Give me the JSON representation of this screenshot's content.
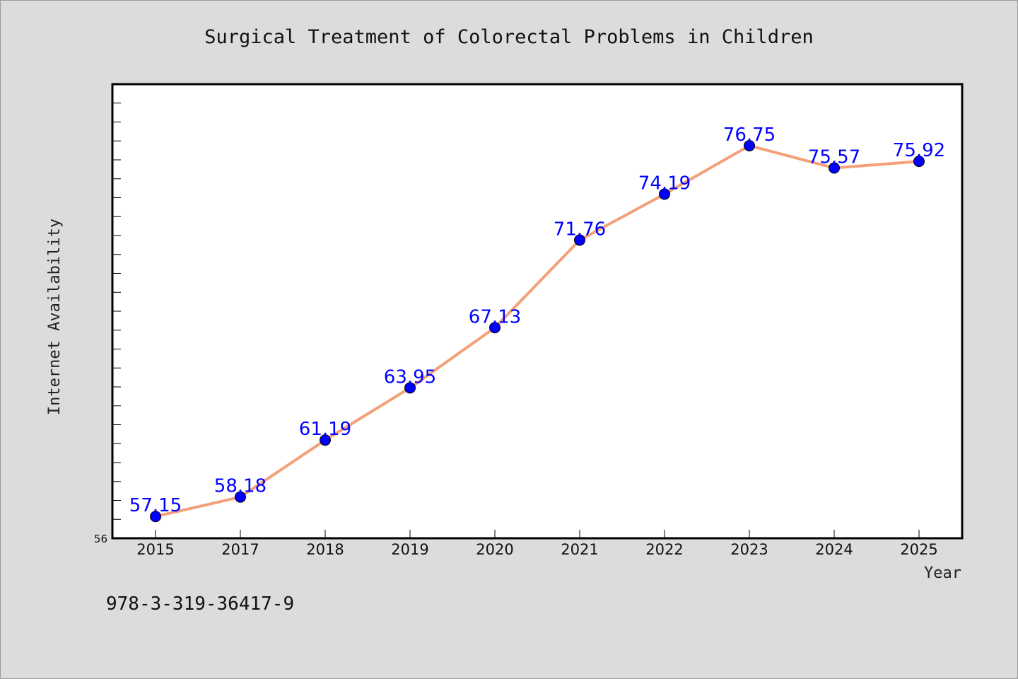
{
  "chart_data": {
    "type": "line",
    "title": "Surgical Treatment of Colorectal Problems in Children",
    "xlabel": "Year",
    "ylabel": "Internet Availability",
    "categories": [
      "2015",
      "2017",
      "2018",
      "2019",
      "2020",
      "2021",
      "2022",
      "2023",
      "2024",
      "2025"
    ],
    "series": [
      {
        "values": [
          57.15,
          58.18,
          61.19,
          63.95,
          67.13,
          71.76,
          74.19,
          76.75,
          75.57,
          75.92
        ],
        "labels": [
          "57.15",
          "58.18",
          "61.19",
          "63.95",
          "67.13",
          "71.76",
          "74.19",
          "76.75",
          "75.57",
          "75.92"
        ],
        "line_color": "#f4a07a",
        "marker_color": "#0000ff"
      }
    ],
    "ylim": [
      56,
      80
    ],
    "y_tick_labels": [
      "56"
    ],
    "grid": false,
    "legend": "none"
  },
  "footer_text": "978-3-319-36417-9",
  "colors": {
    "background": "#dcdcdc",
    "plot_background": "#ffffff",
    "line": "#f4a07a",
    "markers": "#0000ff",
    "labels": "#0000ff"
  }
}
